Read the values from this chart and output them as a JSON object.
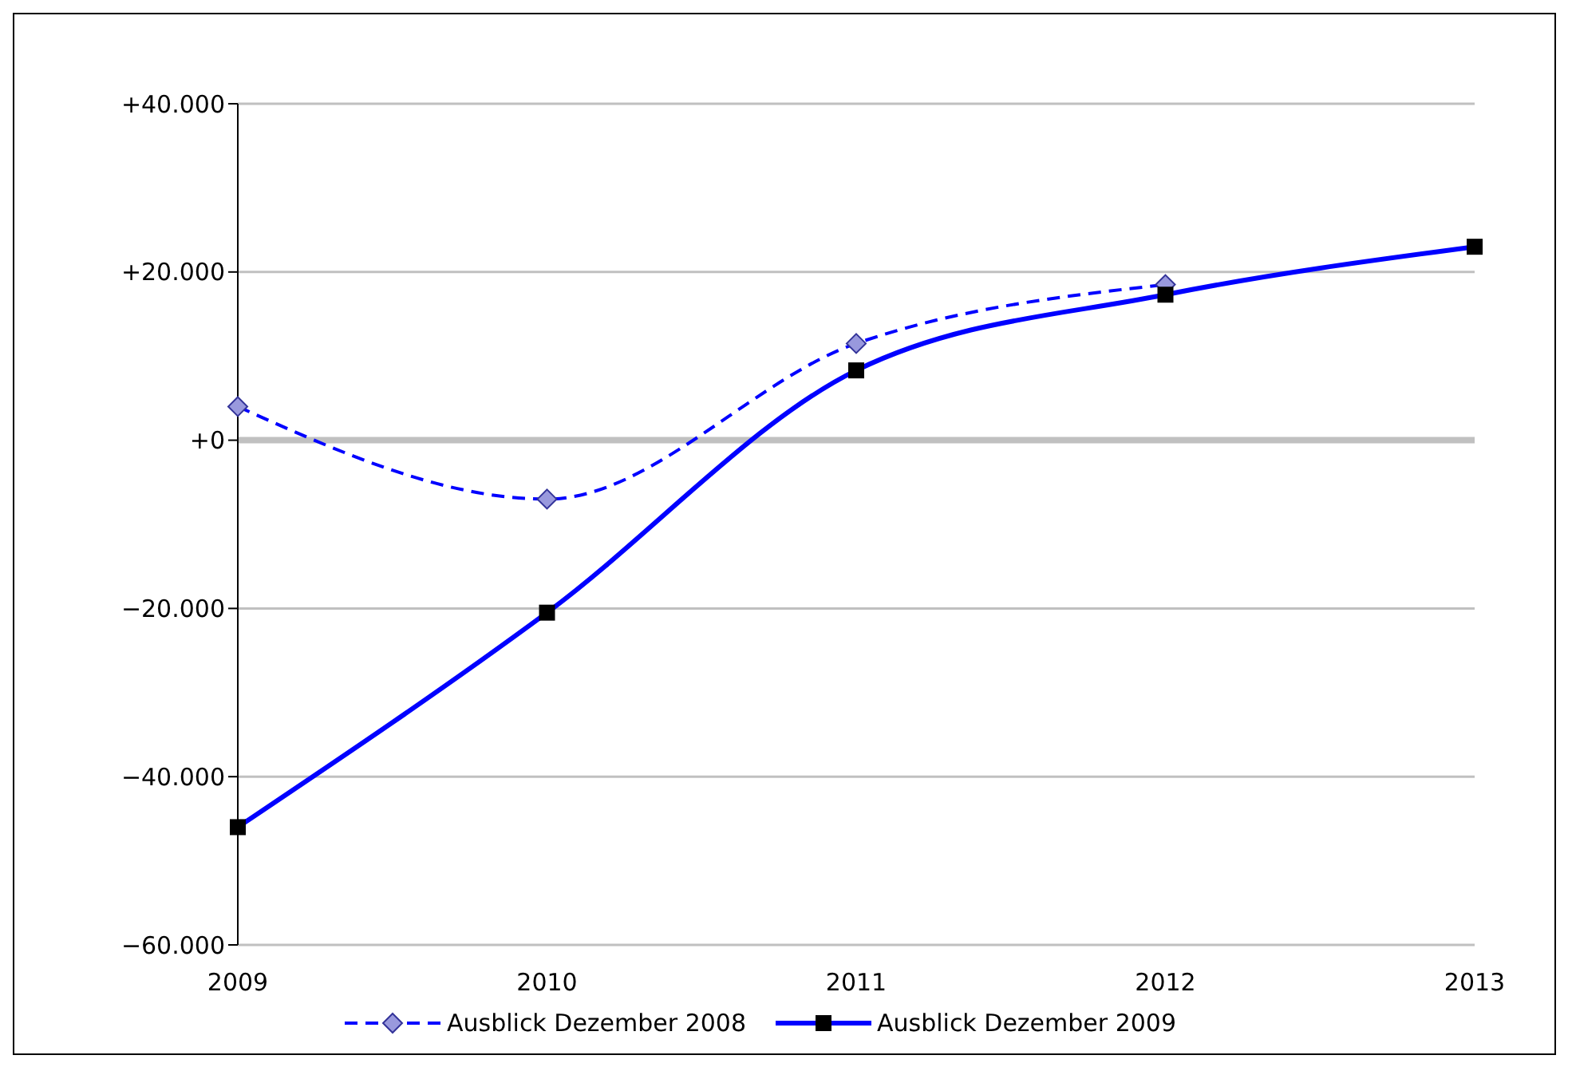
{
  "chart_data": {
    "type": "line",
    "categories": [
      "2009",
      "2010",
      "2011",
      "2012",
      "2013"
    ],
    "series": [
      {
        "name": "Ausblick Dezember 2008",
        "color": "#0000ff",
        "values": [
          4000,
          -7000,
          11500,
          18500,
          null
        ],
        "line_style": "dashed",
        "marker": "diamond"
      },
      {
        "name": "Ausblick Dezember 2009",
        "color": "#0000ff",
        "values": [
          -46000,
          -20500,
          8300,
          17300,
          23000
        ],
        "line_style": "solid",
        "marker": "square"
      }
    ],
    "ylim": [
      -60000,
      40000
    ],
    "yticks": [
      {
        "value": -60000,
        "label": "−60.000"
      },
      {
        "value": -40000,
        "label": "−40.000"
      },
      {
        "value": -20000,
        "label": "−20.000"
      },
      {
        "value": 0,
        "label": "+0"
      },
      {
        "value": 20000,
        "label": "+20.000"
      },
      {
        "value": 40000,
        "label": "+40.000"
      }
    ],
    "ref_lines": [
      {
        "axis": "y",
        "value": 0,
        "color": "#c0c0c0"
      }
    ],
    "grid": "y",
    "legend": "bottom"
  }
}
